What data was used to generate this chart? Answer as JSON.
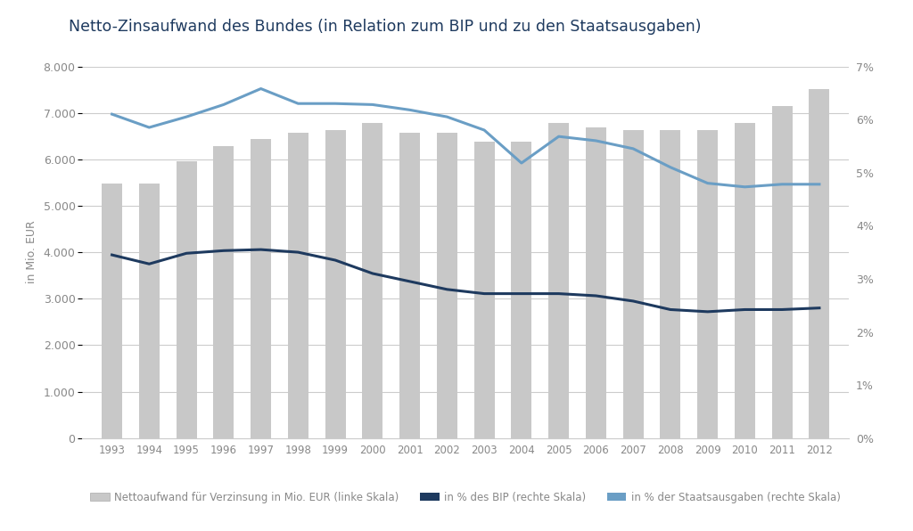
{
  "title": "Netto-Zinsaufwand des Bundes (in Relation zum BIP und zu den Staatsausgaben)",
  "years": [
    1993,
    1994,
    1995,
    1996,
    1997,
    1998,
    1999,
    2000,
    2001,
    2002,
    2003,
    2004,
    2005,
    2006,
    2007,
    2008,
    2009,
    2010,
    2011,
    2012
  ],
  "bar_values": [
    5480,
    5480,
    5950,
    6280,
    6430,
    6580,
    6630,
    6780,
    6580,
    6580,
    6380,
    6380,
    6780,
    6680,
    6630,
    6630,
    6630,
    6780,
    7150,
    7520
  ],
  "bip_pct": [
    3.45,
    3.28,
    3.48,
    3.53,
    3.55,
    3.5,
    3.35,
    3.1,
    2.95,
    2.8,
    2.72,
    2.72,
    2.72,
    2.68,
    2.58,
    2.42,
    2.38,
    2.42,
    2.42,
    2.45
  ],
  "staatsausgaben_pct": [
    6.1,
    5.85,
    6.05,
    6.28,
    6.58,
    6.3,
    6.3,
    6.28,
    6.18,
    6.05,
    5.8,
    5.18,
    5.68,
    5.6,
    5.45,
    5.1,
    4.8,
    4.73,
    4.78,
    4.78
  ],
  "bar_color": "#c8c8c8",
  "bip_color": "#1e3a5f",
  "staatsausgaben_color": "#6a9ec5",
  "ylabel_left": "in Mio. EUR",
  "ylim_left": [
    0,
    8000
  ],
  "ylim_right": [
    0,
    7
  ],
  "yticks_left": [
    0,
    1000,
    2000,
    3000,
    4000,
    5000,
    6000,
    7000,
    8000
  ],
  "ytick_labels_left": [
    "0",
    "1.000",
    "2.000",
    "3.000",
    "4.000",
    "5.000",
    "6.000",
    "7.000",
    "8.000"
  ],
  "yticks_right": [
    0,
    1,
    2,
    3,
    4,
    5,
    6,
    7
  ],
  "ytick_labels_right": [
    "0%",
    "1%",
    "2%",
    "3%",
    "4%",
    "5%",
    "6%",
    "7%"
  ],
  "bg_color": "#ffffff",
  "legend_labels": [
    "Nettoaufwand für Verzinsung in Mio. EUR (linke Skala)",
    "in % des BIP (rechte Skala)",
    "in % der Staatsausgaben (rechte Skala)"
  ],
  "title_color": "#1e3a5f",
  "title_fontsize": 12.5,
  "grid_color": "#cccccc",
  "tick_color": "#888888",
  "bar_width": 0.55
}
